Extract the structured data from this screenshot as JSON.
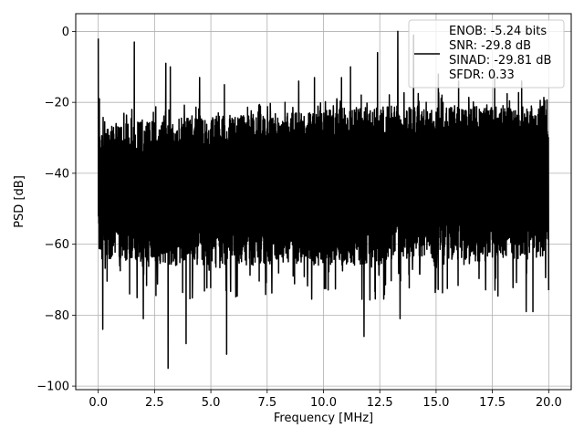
{
  "chart_data": {
    "type": "line",
    "title": "",
    "xlabel": "Frequency [MHz]",
    "ylabel": "PSD [dB]",
    "xlim": [
      -1.0,
      21.0
    ],
    "ylim": [
      -101,
      5
    ],
    "xticks": [
      0.0,
      2.5,
      5.0,
      7.5,
      10.0,
      12.5,
      15.0,
      17.5,
      20.0
    ],
    "xtick_labels": [
      "0.0",
      "2.5",
      "5.0",
      "7.5",
      "10.0",
      "12.5",
      "15.0",
      "17.5",
      "20.0"
    ],
    "yticks": [
      0,
      -20,
      -40,
      -60,
      -80,
      -100
    ],
    "ytick_labels": [
      "0",
      "−20",
      "−40",
      "−60",
      "−80",
      "−100"
    ],
    "grid": true,
    "legend_position": "top-right",
    "line_color": "#000000",
    "legend": {
      "lines": [
        "ENOB: -5.24 bits",
        "SNR: -29.8 dB",
        "SINAD: -29.81 dB",
        "SFDR: 0.33"
      ]
    },
    "series": [
      {
        "x_range": [
          0.0,
          20.0
        ],
        "noise_band": [
          {
            "x": 0.0,
            "upper": -27,
            "lower": -64
          },
          {
            "x": 2.5,
            "upper": -25,
            "lower": -66
          },
          {
            "x": 5.0,
            "upper": -24,
            "lower": -66
          },
          {
            "x": 7.5,
            "upper": -23,
            "lower": -66
          },
          {
            "x": 10.0,
            "upper": -22,
            "lower": -66
          },
          {
            "x": 12.5,
            "upper": -21,
            "lower": -66
          },
          {
            "x": 13.5,
            "upper": -21,
            "lower": -64
          },
          {
            "x": 14.0,
            "upper": -21,
            "lower": -64
          },
          {
            "x": 17.5,
            "upper": -21,
            "lower": -65
          },
          {
            "x": 20.0,
            "upper": -21,
            "lower": -64
          }
        ],
        "peaks": [
          {
            "x": 0.0,
            "y": -2
          },
          {
            "x": 0.05,
            "y": -19
          },
          {
            "x": 1.6,
            "y": -3
          },
          {
            "x": 3.0,
            "y": -9
          },
          {
            "x": 3.2,
            "y": -10
          },
          {
            "x": 4.5,
            "y": -13
          },
          {
            "x": 5.6,
            "y": -15
          },
          {
            "x": 8.9,
            "y": -14
          },
          {
            "x": 9.6,
            "y": -13
          },
          {
            "x": 10.8,
            "y": -13
          },
          {
            "x": 11.2,
            "y": -10
          },
          {
            "x": 11.8,
            "y": -7
          },
          {
            "x": 12.4,
            "y": -6
          },
          {
            "x": 13.3,
            "y": 0
          },
          {
            "x": 14.0,
            "y": -1
          },
          {
            "x": 15.1,
            "y": -12
          },
          {
            "x": 16.0,
            "y": -14
          },
          {
            "x": 17.6,
            "y": -12
          },
          {
            "x": 18.8,
            "y": -14
          }
        ],
        "dips": [
          {
            "x": 0.2,
            "y": -84
          },
          {
            "x": 2.0,
            "y": -81
          },
          {
            "x": 3.1,
            "y": -95
          },
          {
            "x": 3.9,
            "y": -88
          },
          {
            "x": 5.7,
            "y": -91
          },
          {
            "x": 11.8,
            "y": -86
          },
          {
            "x": 13.4,
            "y": -81
          },
          {
            "x": 19.0,
            "y": -79
          },
          {
            "x": 19.3,
            "y": -79
          }
        ]
      }
    ]
  }
}
